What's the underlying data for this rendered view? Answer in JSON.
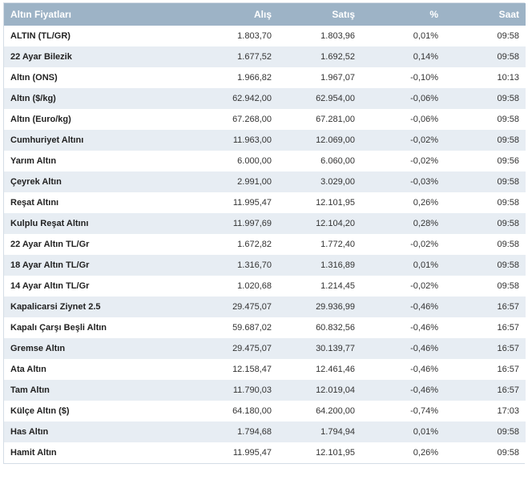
{
  "header": {
    "name": "Altın Fiyatları",
    "buy": "Alış",
    "sell": "Satış",
    "pct": "%",
    "time": "Saat"
  },
  "rows": [
    {
      "name": "ALTIN (TL/GR)",
      "buy": "1.803,70",
      "sell": "1.803,96",
      "pct": "0,01%",
      "time": "09:58"
    },
    {
      "name": "22 Ayar Bilezik",
      "buy": "1.677,52",
      "sell": "1.692,52",
      "pct": "0,14%",
      "time": "09:58"
    },
    {
      "name": "Altın (ONS)",
      "buy": "1.966,82",
      "sell": "1.967,07",
      "pct": "-0,10%",
      "time": "10:13"
    },
    {
      "name": "Altın ($/kg)",
      "buy": "62.942,00",
      "sell": "62.954,00",
      "pct": "-0,06%",
      "time": "09:58"
    },
    {
      "name": "Altın (Euro/kg)",
      "buy": "67.268,00",
      "sell": "67.281,00",
      "pct": "-0,06%",
      "time": "09:58"
    },
    {
      "name": "Cumhuriyet Altını",
      "buy": "11.963,00",
      "sell": "12.069,00",
      "pct": "-0,02%",
      "time": "09:58"
    },
    {
      "name": "Yarım Altın",
      "buy": "6.000,00",
      "sell": "6.060,00",
      "pct": "-0,02%",
      "time": "09:56"
    },
    {
      "name": "Çeyrek Altın",
      "buy": "2.991,00",
      "sell": "3.029,00",
      "pct": "-0,03%",
      "time": "09:58"
    },
    {
      "name": "Reşat Altını",
      "buy": "11.995,47",
      "sell": "12.101,95",
      "pct": "0,26%",
      "time": "09:58"
    },
    {
      "name": "Kulplu Reşat Altını",
      "buy": "11.997,69",
      "sell": "12.104,20",
      "pct": "0,28%",
      "time": "09:58"
    },
    {
      "name": "22 Ayar Altın TL/Gr",
      "buy": "1.672,82",
      "sell": "1.772,40",
      "pct": "-0,02%",
      "time": "09:58"
    },
    {
      "name": "18 Ayar Altın TL/Gr",
      "buy": "1.316,70",
      "sell": "1.316,89",
      "pct": "0,01%",
      "time": "09:58"
    },
    {
      "name": "14 Ayar Altın TL/Gr",
      "buy": "1.020,68",
      "sell": "1.214,45",
      "pct": "-0,02%",
      "time": "09:58"
    },
    {
      "name": "Kapalicarsi Ziynet 2.5",
      "buy": "29.475,07",
      "sell": "29.936,99",
      "pct": "-0,46%",
      "time": "16:57"
    },
    {
      "name": "Kapalı Çarşı Beşli Altın",
      "buy": "59.687,02",
      "sell": "60.832,56",
      "pct": "-0,46%",
      "time": "16:57"
    },
    {
      "name": "Gremse Altın",
      "buy": "29.475,07",
      "sell": "30.139,77",
      "pct": "-0,46%",
      "time": "16:57"
    },
    {
      "name": "Ata Altın",
      "buy": "12.158,47",
      "sell": "12.461,46",
      "pct": "-0,46%",
      "time": "16:57"
    },
    {
      "name": "Tam Altın",
      "buy": "11.790,03",
      "sell": "12.019,04",
      "pct": "-0,46%",
      "time": "16:57"
    },
    {
      "name": "Külçe Altın ($)",
      "buy": "64.180,00",
      "sell": "64.200,00",
      "pct": "-0,74%",
      "time": "17:03"
    },
    {
      "name": "Has Altın",
      "buy": "1.794,68",
      "sell": "1.794,94",
      "pct": "0,01%",
      "time": "09:58"
    },
    {
      "name": "Hamit Altın",
      "buy": "11.995,47",
      "sell": "12.101,95",
      "pct": "0,26%",
      "time": "09:58"
    }
  ]
}
